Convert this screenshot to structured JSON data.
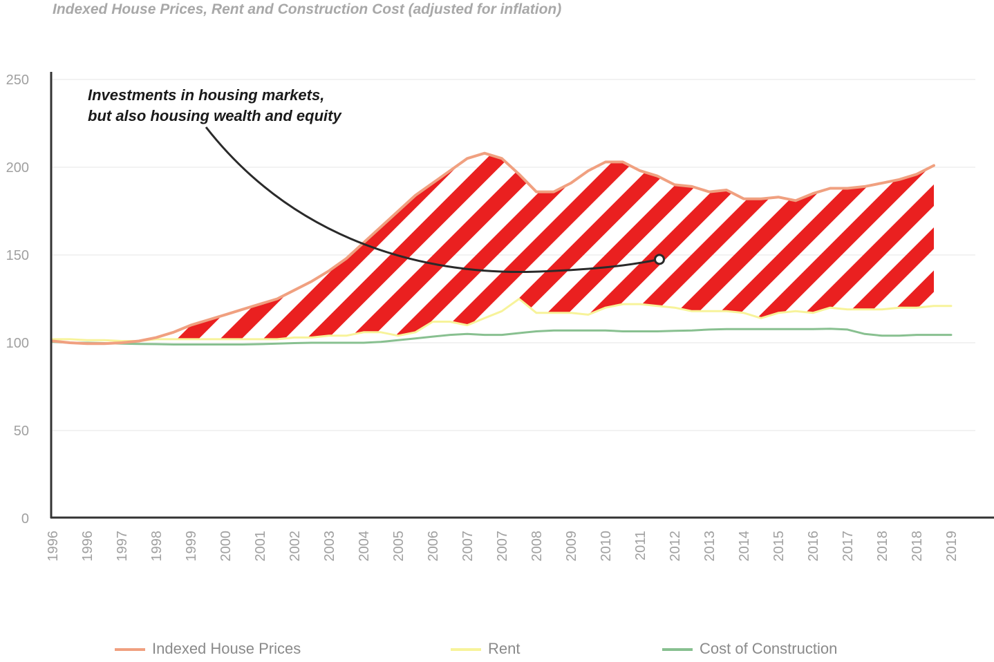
{
  "title": "Indexed House Prices, Rent and Construction Cost (adjusted for inflation)",
  "colors": {
    "house": "#f0a080",
    "rent": "#f7f39a",
    "construction": "#88c090",
    "hatch": "#ea2020",
    "axis": "#333333",
    "grid": "#e6e6e6"
  },
  "chart_data": {
    "type": "line",
    "title": "Indexed House Prices, Rent and Construction Cost (adjusted for inflation)",
    "ylim": [
      0,
      250
    ],
    "yticks": [
      0,
      50,
      100,
      150,
      200,
      250
    ],
    "tick_labels": [
      "1996",
      "1996",
      "1997",
      "1998",
      "1999",
      "2000",
      "2001",
      "2002",
      "2003",
      "2004",
      "2005",
      "2006",
      "2007",
      "2007",
      "2008",
      "2009",
      "2010",
      "2011",
      "2012",
      "2013",
      "2014",
      "2015",
      "2016",
      "2017",
      "2018",
      "2018",
      "2019"
    ],
    "x": [
      0,
      0.5,
      1,
      1.5,
      2,
      2.5,
      3,
      3.5,
      4,
      4.5,
      5,
      5.5,
      6,
      6.5,
      7,
      7.5,
      8,
      8.5,
      9,
      9.5,
      10,
      10.5,
      11,
      11.5,
      12,
      12.5,
      13,
      13.5,
      14,
      14.5,
      15,
      15.5,
      16,
      16.5,
      17,
      17.5,
      18,
      18.5,
      19,
      19.5,
      20,
      20.5,
      21,
      21.5,
      22,
      22.5,
      23,
      23.5,
      24,
      24.5,
      25,
      25.5,
      26,
      26.5
    ],
    "series": [
      {
        "name": "Indexed House Prices",
        "color_key": "house",
        "values": [
          101,
          100,
          99.5,
          99.5,
          100,
          101,
          103,
          106,
          110,
          113,
          116,
          119,
          122,
          125,
          130,
          135,
          141,
          148,
          157,
          166,
          175,
          184,
          191,
          198,
          205,
          208,
          205,
          196,
          186,
          186,
          191,
          198,
          203,
          203,
          198,
          195,
          190,
          189,
          186,
          187,
          182,
          182,
          183,
          181,
          185,
          188,
          188,
          189,
          191,
          193,
          196,
          201,
          null,
          null
        ]
      },
      {
        "name": "Rent",
        "color_key": "rent",
        "values": [
          102,
          102,
          101.5,
          101.5,
          101,
          101,
          102,
          102,
          102,
          102,
          102,
          102,
          102,
          102,
          103,
          103,
          104,
          104,
          106,
          106,
          104,
          106,
          112,
          112,
          110,
          114,
          118,
          125,
          117,
          117,
          117,
          116,
          120,
          122,
          122,
          121,
          120,
          118,
          118,
          118,
          117,
          114,
          117,
          118,
          117,
          120,
          119,
          119,
          119,
          120,
          120,
          121,
          121,
          null
        ]
      },
      {
        "name": "Cost of Construction",
        "color_key": "construction",
        "values": [
          100.5,
          100,
          100,
          99.8,
          99.5,
          99.3,
          99.2,
          99,
          99,
          99,
          99,
          99,
          99.2,
          99.5,
          99.8,
          100,
          100,
          100,
          100,
          100.5,
          101.5,
          102.5,
          103.5,
          104.5,
          105,
          104.5,
          104.5,
          105.5,
          106.5,
          107,
          107,
          107,
          107,
          106.5,
          106.5,
          106.5,
          106.8,
          107,
          107.5,
          107.8,
          107.8,
          107.8,
          107.8,
          107.8,
          107.8,
          108,
          107.5,
          105,
          104,
          104,
          104.5,
          104.5,
          104.5,
          null
        ]
      }
    ],
    "annotation": {
      "lines": [
        "Investments in housing markets,",
        "but also housing wealth and equity"
      ],
      "target_x": 17.5,
      "target_y": 147.5
    },
    "legend": [
      "Indexed House Prices",
      "Rent",
      "Cost of Construction"
    ]
  }
}
